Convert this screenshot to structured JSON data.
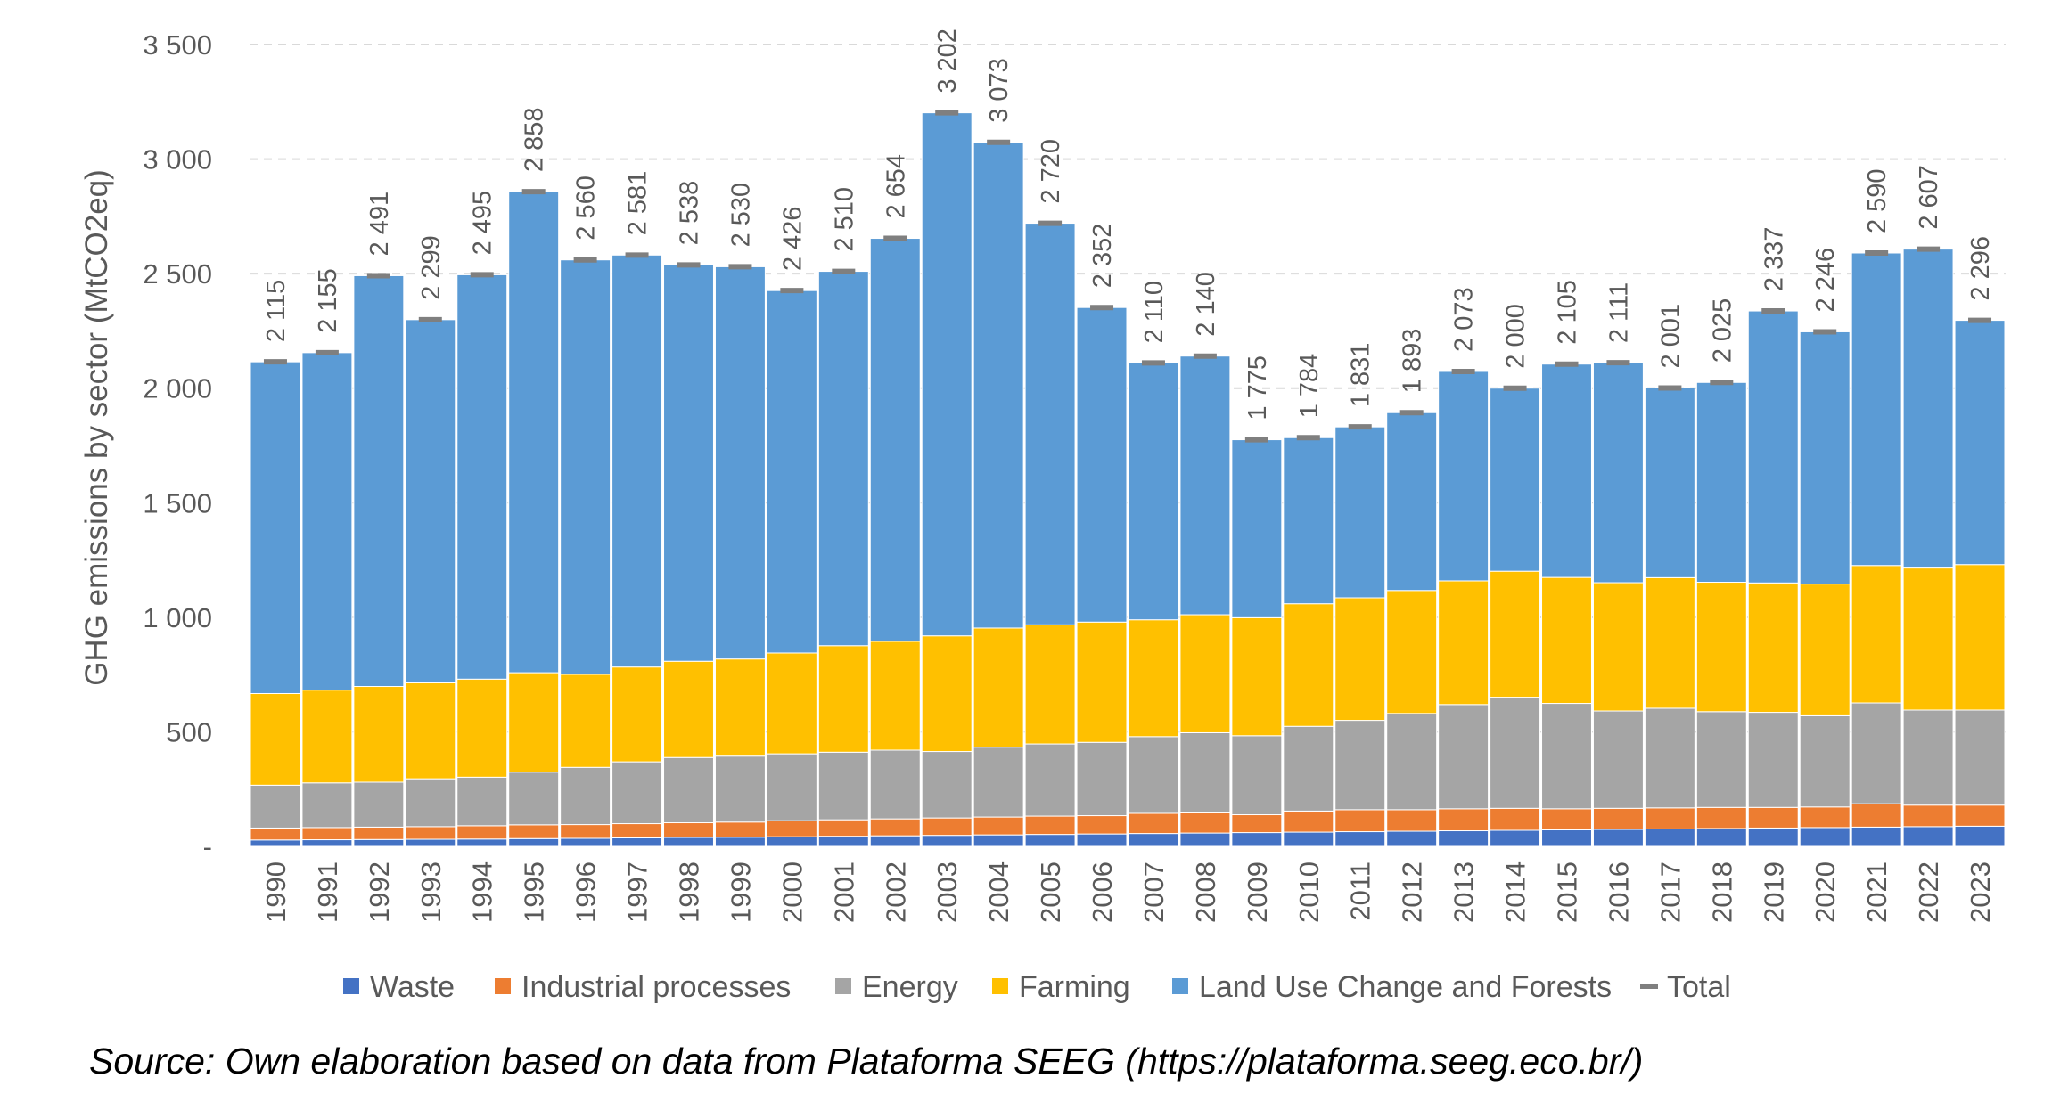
{
  "chart_data": {
    "type": "bar",
    "stacked": true,
    "ylabel": "GHG emissions by sector (MtCO2eq)",
    "ylim": [
      0,
      3500
    ],
    "yticks": [
      0,
      500,
      1000,
      1500,
      2000,
      2500,
      3000,
      3500
    ],
    "ytick_labels": [
      "-",
      "500",
      "1 000",
      "1 500",
      "2 000",
      "2 500",
      "3 000",
      "3 500"
    ],
    "grid": "horizontal dashed",
    "legend_position": "bottom",
    "categories": [
      "1990",
      "1991",
      "1992",
      "1993",
      "1994",
      "1995",
      "1996",
      "1997",
      "1998",
      "1999",
      "2000",
      "2001",
      "2002",
      "2003",
      "2004",
      "2005",
      "2006",
      "2007",
      "2008",
      "2009",
      "2010",
      "2011",
      "2012",
      "2013",
      "2014",
      "2015",
      "2016",
      "2017",
      "2018",
      "2019",
      "2020",
      "2021",
      "2022",
      "2023"
    ],
    "series": [
      {
        "name": "Waste",
        "color": "#4472c4",
        "values": [
          28,
          29,
          30,
          31,
          32,
          34,
          35,
          37,
          39,
          40,
          42,
          44,
          46,
          48,
          50,
          52,
          54,
          56,
          58,
          60,
          62,
          64,
          66,
          68,
          70,
          72,
          74,
          76,
          78,
          80,
          82,
          84,
          86,
          88
        ]
      },
      {
        "name": "Industrial processes",
        "color": "#ed7d31",
        "values": [
          52,
          53,
          54,
          55,
          58,
          60,
          60,
          62,
          64,
          66,
          70,
          72,
          74,
          76,
          78,
          80,
          80,
          88,
          88,
          78,
          92,
          96,
          94,
          96,
          96,
          92,
          92,
          92,
          92,
          90,
          90,
          102,
          94,
          92
        ]
      },
      {
        "name": "Energy",
        "color": "#a5a5a5",
        "values": [
          187,
          195,
          196,
          209,
          212,
          230,
          250,
          270,
          285,
          288,
          292,
          295,
          300,
          290,
          305,
          315,
          320,
          335,
          350,
          345,
          370,
          390,
          420,
          455,
          485,
          460,
          425,
          435,
          418,
          415,
          398,
          440,
          415,
          415
        ]
      },
      {
        "name": "Farming",
        "color": "#ffc000",
        "values": [
          400,
          405,
          418,
          419,
          428,
          434,
          406,
          414,
          420,
          424,
          440,
          465,
          475,
          505,
          520,
          520,
          525,
          510,
          515,
          515,
          535,
          535,
          537,
          540,
          550,
          550,
          560,
          570,
          565,
          565,
          575,
          600,
          620,
          635
        ]
      },
      {
        "name": "Land Use Change and Forests",
        "color": "#5b9bd5",
        "values": [
          1448,
          1473,
          1793,
          1585,
          1765,
          2100,
          1809,
          1798,
          1730,
          1712,
          1582,
          1634,
          1759,
          2283,
          2120,
          1753,
          1373,
          1121,
          1129,
          777,
          725,
          746,
          776,
          914,
          799,
          931,
          960,
          828,
          872,
          1187,
          1101,
          1364,
          1392,
          1066
        ]
      },
      {
        "name": "Total",
        "color": "#7f7f7f",
        "values": [
          2115,
          2155,
          2491,
          2299,
          2495,
          2858,
          2560,
          2581,
          2538,
          2530,
          2426,
          2510,
          2654,
          3202,
          3073,
          2720,
          2352,
          2110,
          2140,
          1775,
          1784,
          1831,
          1893,
          2073,
          2000,
          2105,
          2111,
          2001,
          2025,
          2337,
          2246,
          2590,
          2607,
          2296
        ]
      }
    ],
    "total_labels": [
      "2 115",
      "2 155",
      "2 491",
      "2 299",
      "2 495",
      "2 858",
      "2 560",
      "2 581",
      "2 538",
      "2 530",
      "2 426",
      "2 510",
      "2 654",
      "3 202",
      "3 073",
      "2 720",
      "2 352",
      "2 110",
      "2 140",
      "1 775",
      "1 784",
      "1 831",
      "1 893",
      "2 073",
      "2 000",
      "2 105",
      "2 111",
      "2 001",
      "2 025",
      "2 337",
      "2 246",
      "2 590",
      "2 607",
      "2 296"
    ]
  },
  "source_text": "Source: Own elaboration based on data from Plataforma SEEG (https://plataforma.seeg.eco.br/)"
}
